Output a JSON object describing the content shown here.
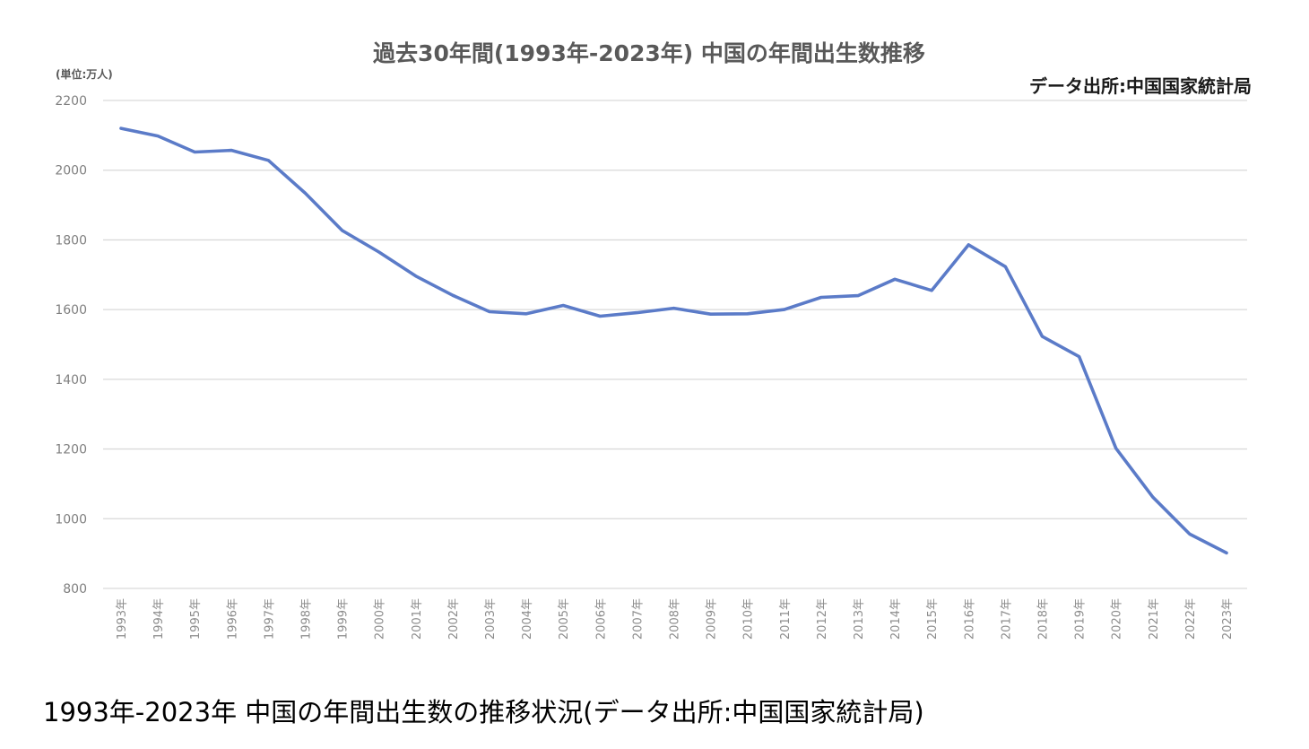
{
  "chart_data": {
    "type": "line",
    "title": "過去30年間(1993年-2023年) 中国の年間出生数推移",
    "source_note": "データ出所:中国国家統計局",
    "unit_label": "(単位:万人)",
    "ylim": [
      800,
      2200
    ],
    "y_ticks": [
      "2200",
      "2000",
      "1800",
      "1600",
      "1400",
      "1200",
      "1000",
      "800"
    ],
    "y_tick_values": [
      2200,
      2000,
      1800,
      1600,
      1400,
      1200,
      1000,
      800
    ],
    "grid": true,
    "legend": "none",
    "line_color": "#5b7bc8",
    "categories": [
      "1993年",
      "1994年",
      "1995年",
      "1996年",
      "1997年",
      "1998年",
      "1999年",
      "2000年",
      "2001年",
      "2002年",
      "2003年",
      "2004年",
      "2005年",
      "2006年",
      "2007年",
      "2008年",
      "2009年",
      "2010年",
      "2011年",
      "2012年",
      "2013年",
      "2014年",
      "2015年",
      "2016年",
      "2017年",
      "2018年",
      "2019年",
      "2020年",
      "2021年",
      "2022年",
      "2023年"
    ],
    "series": [
      {
        "values": [
          2120,
          2098,
          2052,
          2057,
          2028,
          1934,
          1827,
          1765,
          1696,
          1641,
          1594,
          1588,
          1612,
          1581,
          1591,
          1604,
          1587,
          1588,
          1600,
          1635,
          1640,
          1687,
          1655,
          1786,
          1723,
          1523,
          1465,
          1202,
          1062,
          956,
          902
        ]
      }
    ]
  },
  "caption": "1993年-2023年 中国の年間出生数の推移状況(データ出所:中国国家統計局)"
}
